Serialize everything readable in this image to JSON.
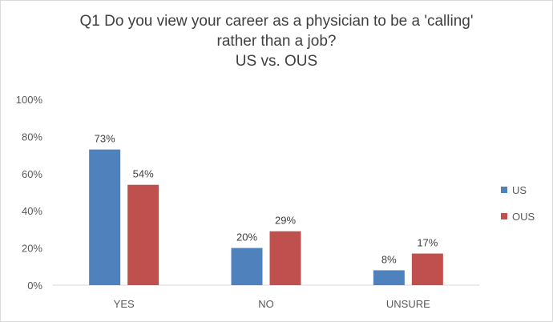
{
  "chart_data": {
    "type": "bar",
    "title_lines": [
      "Q1 Do you view your career as a physician to be a 'calling'",
      "rather than a job?",
      "US vs. OUS"
    ],
    "categories": [
      "YES",
      "NO",
      "UNSURE"
    ],
    "series": [
      {
        "name": "US",
        "values": [
          73,
          20,
          8
        ],
        "labels": [
          "73%",
          "20%",
          "8%"
        ],
        "color": "#4f81bd"
      },
      {
        "name": "OUS",
        "values": [
          54,
          29,
          17
        ],
        "labels": [
          "54%",
          "29%",
          "17%"
        ],
        "color": "#c0504d"
      }
    ],
    "ylim": [
      0,
      100
    ],
    "yticks": [
      "0%",
      "20%",
      "40%",
      "60%",
      "80%",
      "100%"
    ],
    "ytick_values": [
      0,
      20,
      40,
      60,
      80,
      100
    ],
    "grid": false,
    "legend": "right"
  }
}
